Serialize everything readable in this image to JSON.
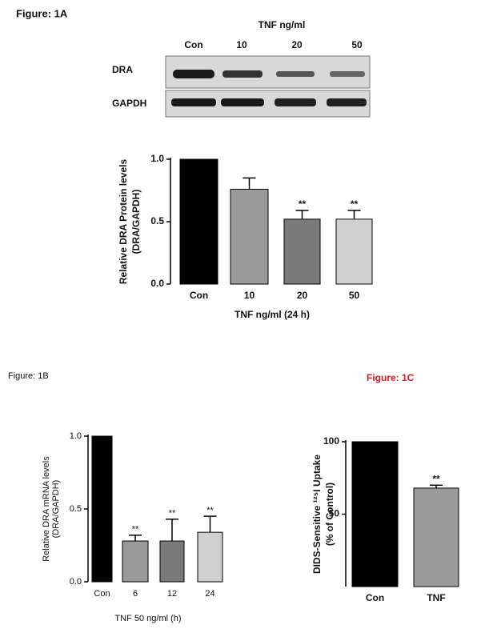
{
  "blot": {
    "label": "Figure: 1A",
    "title": "TNF ng/ml",
    "lanes": [
      "Con",
      "10",
      "20",
      "50"
    ],
    "rows": [
      "DRA",
      "GAPDH"
    ]
  },
  "chart_data": [
    {
      "type": "bar",
      "ylabel": [
        "Relative DRA Protein levels",
        "(DRA/GAPDH)"
      ],
      "xlabel": "TNF ng/ml (24 h)",
      "categories": [
        "Con",
        "10",
        "20",
        "50"
      ],
      "values": [
        1.0,
        0.76,
        0.52,
        0.52
      ],
      "errors": [
        0,
        0.09,
        0.07,
        0.07
      ],
      "annotations": [
        null,
        null,
        "**",
        "**"
      ],
      "colors": [
        "#000000",
        "#9a9a9a",
        "#7a7a7a",
        "#cfcfcf"
      ],
      "ylim": [
        0,
        1.0
      ],
      "yticks": [
        {
          "value": 0,
          "label": "0.0"
        },
        {
          "value": 0.5,
          "label": "0.5"
        },
        {
          "value": 1,
          "label": "1.0"
        }
      ]
    },
    {
      "type": "bar",
      "panel": "Figure: 1B",
      "ylabel": [
        "Relative DRA mRNA levels",
        "(DRA/GAPDH)"
      ],
      "xlabel": "TNF 50 ng/ml (h)",
      "categories": [
        "Con",
        "6",
        "12",
        "24"
      ],
      "values": [
        1.0,
        0.28,
        0.28,
        0.34
      ],
      "errors": [
        0,
        0.04,
        0.15,
        0.11
      ],
      "annotations": [
        null,
        "**",
        "**",
        "**"
      ],
      "colors": [
        "#000000",
        "#9a9a9a",
        "#7a7a7a",
        "#cfcfcf"
      ],
      "ylim": [
        0,
        1.0
      ],
      "yticks": [
        {
          "value": 0,
          "label": "0.0"
        },
        {
          "value": 0.5,
          "label": "0.5"
        },
        {
          "value": 1,
          "label": "1.0"
        }
      ]
    },
    {
      "type": "bar",
      "panel": "Figure: 1C",
      "panel_color": "#d62020",
      "ylabel": [
        "DIDS-Sensitive ¹²⁵I Uptake",
        "(% of Control)"
      ],
      "categories": [
        "Con",
        "TNF"
      ],
      "values": [
        100,
        68
      ],
      "errors": [
        0,
        2
      ],
      "annotations": [
        null,
        "**"
      ],
      "colors": [
        "#000000",
        "#9a9a9a"
      ],
      "ylim": [
        0,
        100
      ],
      "yticks": [
        50,
        100
      ]
    }
  ]
}
